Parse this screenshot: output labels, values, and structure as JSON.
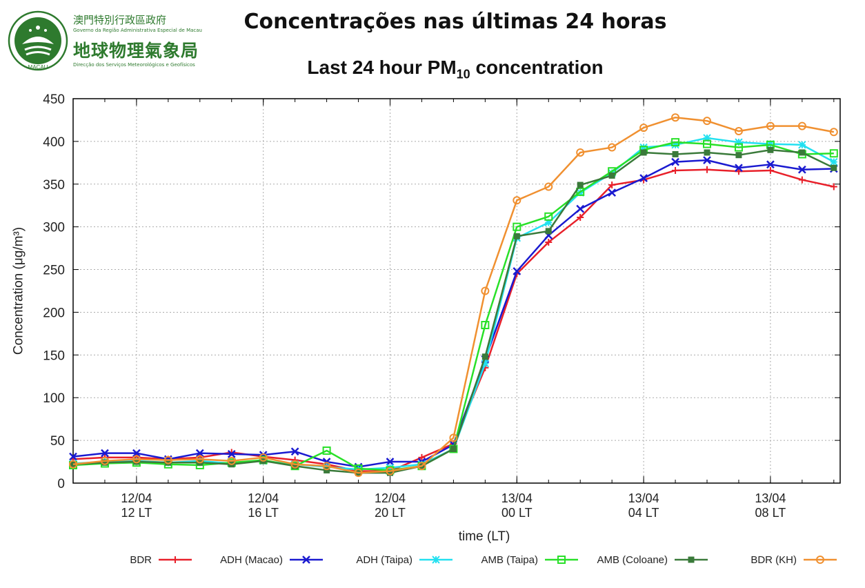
{
  "header": {
    "org_cn_small": "澳門特別行政區政府",
    "org_pt_gov": "Governo da Região Administrativa Especial de Macau",
    "org_cn_big": "地球物理氣象局",
    "org_pt_dept": "Direcção dos Serviços Meteorológicos e Geofísicos",
    "emblem_text": "MACAU",
    "title_pt": "Concentrações nas últimas 24 horas",
    "title_en_prefix": "Last 24 hour PM",
    "title_en_sub": "10",
    "title_en_suffix": " concentration"
  },
  "chart_data": {
    "type": "line",
    "ylabel": "Concentration (μg/m³)",
    "xlabel": "time (LT)",
    "ylim": [
      0,
      450
    ],
    "yticks": [
      0,
      50,
      100,
      150,
      200,
      250,
      300,
      350,
      400,
      450
    ],
    "x_hours": [
      10,
      11,
      12,
      13,
      14,
      15,
      16,
      17,
      18,
      19,
      20,
      21,
      22,
      23,
      24,
      25,
      26,
      27,
      28,
      29,
      30,
      31,
      32,
      33,
      34
    ],
    "xlim": [
      10,
      34.2
    ],
    "xticks": [
      {
        "x": 12,
        "date": "12/04",
        "time": "12 LT"
      },
      {
        "x": 16,
        "date": "12/04",
        "time": "16 LT"
      },
      {
        "x": 20,
        "date": "12/04",
        "time": "20 LT"
      },
      {
        "x": 24,
        "date": "13/04",
        "time": "00 LT"
      },
      {
        "x": 28,
        "date": "13/04",
        "time": "04 LT"
      },
      {
        "x": 32,
        "date": "13/04",
        "time": "08 LT"
      }
    ],
    "grid": true,
    "legend_position": "bottom",
    "series": [
      {
        "name": "BDR",
        "color": "#e8202a",
        "marker": "plus",
        "values": [
          28,
          30,
          30,
          28,
          30,
          36,
          31,
          27,
          22,
          14,
          14,
          30,
          46,
          135,
          245,
          282,
          311,
          349,
          355,
          366,
          367,
          365,
          366,
          355,
          347
        ]
      },
      {
        "name": "ADH (Macao)",
        "color": "#1a1ad0",
        "marker": "cross",
        "values": [
          31,
          35,
          35,
          28,
          35,
          34,
          33,
          37,
          25,
          19,
          25,
          25,
          45,
          145,
          248,
          290,
          321,
          340,
          357,
          376,
          378,
          369,
          373,
          367,
          368
        ]
      },
      {
        "name": "ADH (Taipa)",
        "color": "#22e0f0",
        "marker": "star",
        "values": [
          23,
          25,
          26,
          24,
          26,
          23,
          26,
          22,
          19,
          16,
          18,
          22,
          40,
          140,
          287,
          305,
          340,
          363,
          393,
          396,
          404,
          399,
          397,
          396,
          376
        ]
      },
      {
        "name": "AMB (Taipa)",
        "color": "#28e028",
        "marker": "square-open",
        "values": [
          21,
          23,
          24,
          22,
          21,
          24,
          27,
          20,
          38,
          17,
          15,
          20,
          40,
          185,
          300,
          312,
          341,
          365,
          390,
          399,
          397,
          393,
          396,
          385,
          386
        ]
      },
      {
        "name": "AMB (Coloane)",
        "color": "#3a7a3a",
        "marker": "square-filled",
        "values": [
          22,
          24,
          25,
          24,
          24,
          22,
          26,
          20,
          15,
          12,
          12,
          20,
          40,
          148,
          289,
          295,
          349,
          360,
          387,
          385,
          387,
          384,
          390,
          387,
          369
        ]
      },
      {
        "name": "BDR (KH)",
        "color": "#f09030",
        "marker": "circle-open",
        "values": [
          22,
          26,
          28,
          27,
          28,
          26,
          30,
          22,
          20,
          12,
          14,
          20,
          53,
          225,
          331,
          347,
          387,
          393,
          416,
          428,
          424,
          412,
          418,
          418,
          411
        ]
      }
    ]
  }
}
